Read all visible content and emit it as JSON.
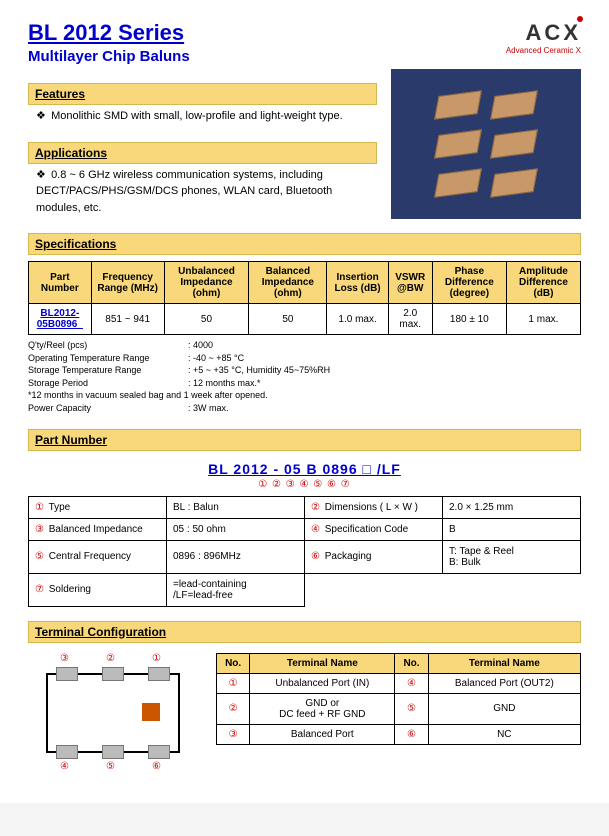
{
  "header": {
    "series_title": "BL 2012 Series",
    "subtitle": "Multilayer Chip Baluns",
    "logo_main": "ACX",
    "logo_sub": "Advanced Ceramic X"
  },
  "sections": {
    "features": "Features",
    "applications": "Applications",
    "specifications": "Specifications",
    "part_number": "Part Number",
    "terminal_config": "Terminal Configuration"
  },
  "features_text": "Monolithic SMD with small, low-profile and light-weight type.",
  "applications_text": "0.8 ~ 6 GHz wireless communication systems, including DECT/PACS/PHS/GSM/DCS phones, WLAN card, Bluetooth modules, etc.",
  "product_image": {
    "bg_color": "#2a3a6a",
    "chip_color": "#c89868",
    "chip_border": "#8a6840",
    "chip_count": 6
  },
  "spec_table": {
    "headers": [
      "Part Number",
      "Frequency Range (MHz)",
      "Unbalanced Impedance (ohm)",
      "Balanced Impedance (ohm)",
      "Insertion Loss (dB)",
      "VSWR @BW",
      "Phase Difference (degree)",
      "Amplitude Difference (dB)"
    ],
    "row": {
      "pn": "BL2012-05B0896_",
      "freq": "851 ~ 941",
      "unbal": "50",
      "bal": "50",
      "iloss": "1.0 max.",
      "vswr": "2.0 max.",
      "phase": "180 ± 10",
      "amp": "1 max."
    }
  },
  "notes": {
    "qty": {
      "label": "Q'ty/Reel (pcs)",
      "val": ": 4000"
    },
    "op_temp": {
      "label": "Operating Temperature Range",
      "val": ": -40 ~ +85 °C"
    },
    "st_temp": {
      "label": "Storage Temperature Range",
      "val": ": +5 ~ +35 °C, Humidity 45~75%RH"
    },
    "st_period": {
      "label": "Storage Period",
      "val": ": 12 months max.*"
    },
    "footnote": "*12 months in vacuum sealed bag and 1 week after opened.",
    "power": {
      "label": "Power Capacity",
      "val": ": 3W max."
    }
  },
  "pn_breakdown": {
    "parts": "BL   2012   -   05   B   0896   □   /LF",
    "nums": "①    ②        ③   ④   ⑤     ⑥   ⑦"
  },
  "pn_table": {
    "rows": [
      {
        "n": "①",
        "label": "Type",
        "val": "BL : Balun",
        "n2": "②",
        "label2": "Dimensions ( L × W )",
        "val2": "2.0 × 1.25 mm"
      },
      {
        "n": "③",
        "label": "Balanced Impedance",
        "val": "05 : 50 ohm",
        "n2": "④",
        "label2": "Specification Code",
        "val2": "B"
      },
      {
        "n": "⑤",
        "label": "Central Frequency",
        "val": "0896 : 896MHz",
        "n2": "⑥",
        "label2": "Packaging",
        "val2": "T: Tape & Reel\nB: Bulk"
      },
      {
        "n": "⑦",
        "label": "Soldering",
        "val": "  =lead-containing\n/LF=lead-free",
        "n2": "",
        "label2": "",
        "val2": ""
      }
    ]
  },
  "terminal": {
    "headers": [
      "No.",
      "Terminal Name",
      "No.",
      "Terminal Name"
    ],
    "rows": [
      {
        "n1": "①",
        "name1": "Unbalanced Port (IN)",
        "n2": "④",
        "name2": "Balanced Port (OUT2)"
      },
      {
        "n1": "②",
        "name1": "GND or\nDC feed + RF GND",
        "n2": "⑤",
        "name2": "GND"
      },
      {
        "n1": "③",
        "name1": "Balanced Port",
        "n2": "⑥",
        "name2": "NC"
      }
    ],
    "diagram_nums": {
      "t1": "③",
      "t2": "②",
      "t3": "①",
      "b1": "④",
      "b2": "⑤",
      "b3": "⑥"
    }
  },
  "colors": {
    "section_bar_bg": "#f8d87a",
    "link_color": "#0000cc",
    "accent_red": "#cc0000"
  }
}
